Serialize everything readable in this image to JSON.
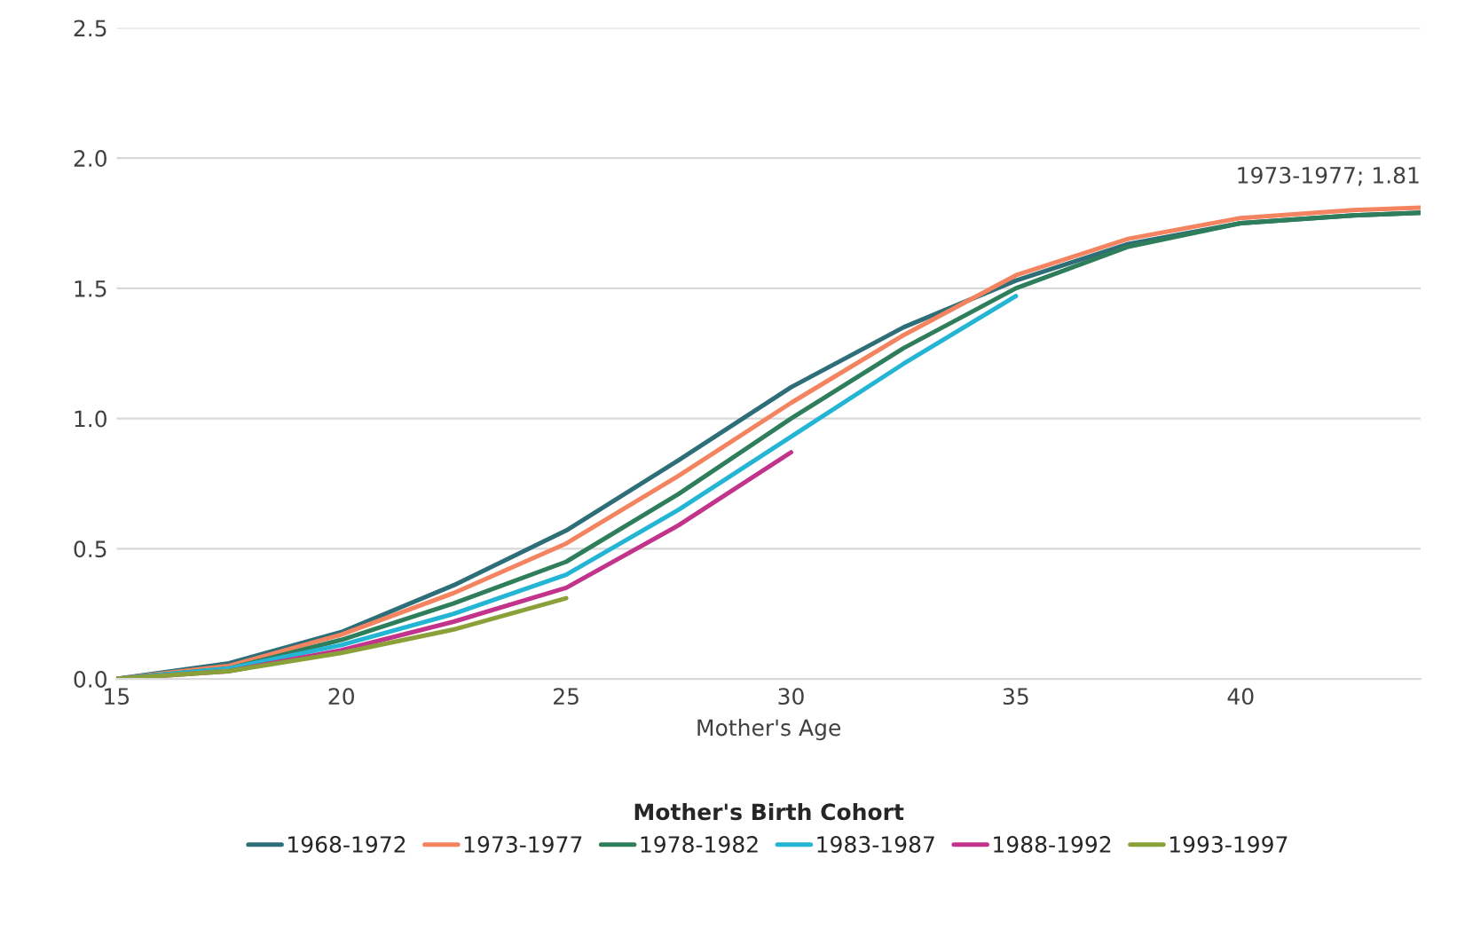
{
  "chart_data": {
    "type": "line",
    "xlabel": "Mother's Age",
    "legend_title": "Mother's Birth Cohort",
    "legend": "bottom",
    "grid": "y",
    "xlim": [
      15,
      44
    ],
    "xticks": [
      15,
      20,
      25,
      30,
      35,
      40
    ],
    "ylim": [
      0,
      2.5
    ],
    "yticks": [
      {
        "value": 0,
        "label": "0.0"
      },
      {
        "value": 0.5,
        "label": "0.5"
      },
      {
        "value": 1,
        "label": "1.0"
      },
      {
        "value": 1.5,
        "label": "1.5"
      },
      {
        "value": 2,
        "label": "2.0"
      },
      {
        "value": 2.5,
        "label": "2.5"
      }
    ],
    "annotations": [
      {
        "text": "1973-1977; 1.81",
        "x": 44,
        "y": 1.81
      }
    ],
    "series": [
      {
        "name": "1968-1972",
        "color": "#2e6e78",
        "x": [
          15,
          17.5,
          20,
          22.5,
          25,
          27.5,
          30,
          32.5,
          35,
          37.5,
          40,
          42.5,
          44
        ],
        "values": [
          0,
          0.06,
          0.18,
          0.36,
          0.57,
          0.84,
          1.12,
          1.35,
          1.53,
          1.67,
          1.75,
          1.78,
          1.79
        ]
      },
      {
        "name": "1973-1977",
        "color": "#f4845f",
        "x": [
          15,
          17.5,
          20,
          22.5,
          25,
          27.5,
          30,
          32.5,
          35,
          37.5,
          40,
          42.5,
          44
        ],
        "values": [
          0,
          0.05,
          0.17,
          0.33,
          0.52,
          0.78,
          1.06,
          1.32,
          1.55,
          1.69,
          1.77,
          1.8,
          1.81
        ]
      },
      {
        "name": "1978-1982",
        "color": "#2e7d5b",
        "x": [
          15,
          17.5,
          20,
          22.5,
          25,
          27.5,
          30,
          32.5,
          35,
          37.5,
          40,
          42.5,
          44
        ],
        "values": [
          0,
          0.04,
          0.15,
          0.29,
          0.45,
          0.71,
          1.0,
          1.27,
          1.5,
          1.66,
          1.75,
          1.78,
          1.79
        ]
      },
      {
        "name": "1983-1987",
        "color": "#23b5d3",
        "x": [
          15,
          17.5,
          20,
          22.5,
          25,
          27.5,
          30,
          32.5,
          35
        ],
        "values": [
          0,
          0.04,
          0.13,
          0.25,
          0.4,
          0.65,
          0.93,
          1.21,
          1.47
        ]
      },
      {
        "name": "1988-1992",
        "color": "#c2338b",
        "x": [
          15,
          17.5,
          20,
          22.5,
          25,
          27.5,
          30
        ],
        "values": [
          0,
          0.03,
          0.11,
          0.22,
          0.35,
          0.59,
          0.87
        ]
      },
      {
        "name": "1993-1997",
        "color": "#8aa13a",
        "x": [
          15,
          17.5,
          20,
          22.5,
          25
        ],
        "values": [
          0,
          0.03,
          0.1,
          0.19,
          0.31
        ]
      }
    ]
  }
}
